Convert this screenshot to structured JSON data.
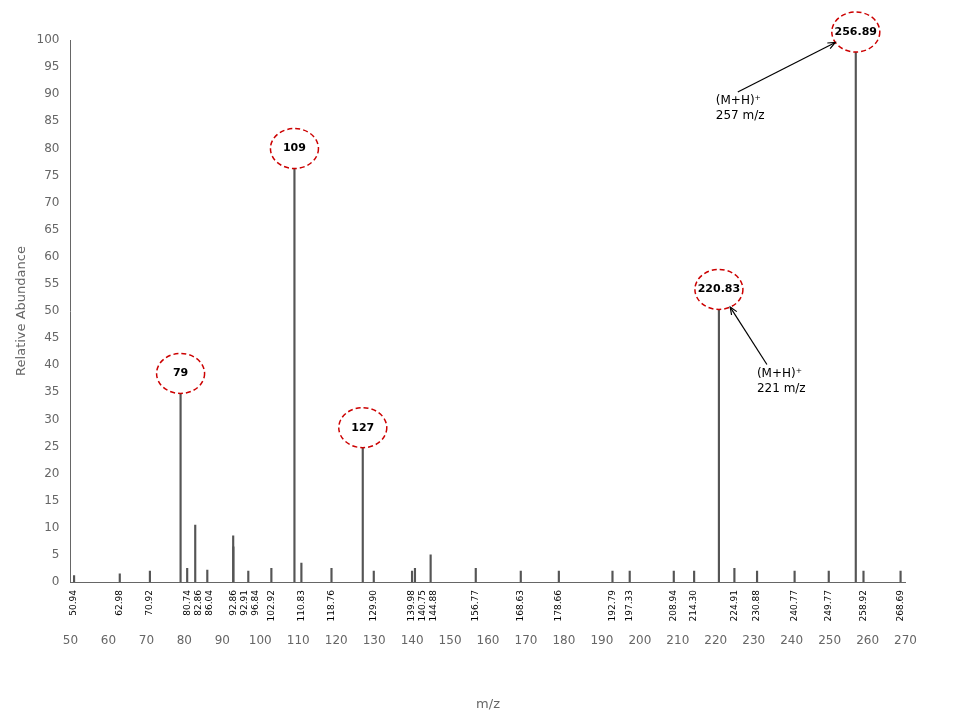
{
  "chart_data": {
    "type": "stem",
    "xlabel": "m/z",
    "ylabel": "Relative Abundance",
    "xlim": [
      50,
      270
    ],
    "ylim": [
      0,
      100
    ],
    "xticks": [
      50,
      60,
      70,
      80,
      90,
      100,
      110,
      120,
      130,
      140,
      150,
      160,
      170,
      180,
      190,
      200,
      210,
      220,
      230,
      240,
      250,
      260,
      270
    ],
    "yticks": [
      0,
      5,
      10,
      15,
      20,
      25,
      30,
      35,
      40,
      45,
      50,
      55,
      60,
      65,
      70,
      75,
      80,
      85,
      90,
      95,
      100
    ],
    "grid": false,
    "legend": false,
    "color": "#555555",
    "x": [
      50.94,
      62.98,
      70.92,
      80.74,
      82.86,
      86.04,
      92.86,
      92.91,
      96.84,
      102.92,
      110.83,
      118.76,
      129.9,
      139.98,
      140.75,
      144.88,
      156.77,
      168.63,
      178.66,
      192.79,
      197.33,
      208.94,
      214.3,
      224.91,
      230.88,
      240.77,
      249.77,
      258.92,
      268.69,
      256.89,
      109.0,
      220.83,
      79.0,
      127.0
    ],
    "values": [
      1.2,
      1.5,
      2.0,
      2.5,
      10.5,
      2.2,
      8.5,
      6.5,
      2.0,
      2.5,
      3.5,
      2.5,
      2.0,
      2.0,
      2.5,
      5.0,
      2.5,
      2.0,
      2.0,
      2.0,
      2.0,
      2.0,
      2.0,
      2.5,
      2.0,
      2.0,
      2.0,
      2.0,
      2.0,
      100.0,
      78.5,
      52.5,
      37.0,
      27.0
    ],
    "x_labels": [
      "50.94",
      "62.98",
      "70.92",
      "80.74",
      "82.86",
      "86.04",
      "92.86",
      "92.91",
      "96.84",
      "102.92",
      "110.83",
      "118.76",
      "129.90",
      "139.98",
      "140.75",
      "144.88",
      "156.77",
      "168.63",
      "178.66",
      "192.79",
      "197.33",
      "208.94",
      "214.30",
      "224.91",
      "230.88",
      "240.77",
      "249.77",
      "258.92",
      "268.69",
      null,
      null,
      null,
      null,
      null
    ],
    "annotations": [
      {
        "text": "256.89",
        "x": 256.89,
        "y": 100.0,
        "shape": "ellipse",
        "color": "#cc0000"
      },
      {
        "text": "109",
        "x": 109.0,
        "y": 78.5,
        "shape": "ellipse",
        "color": "#cc0000"
      },
      {
        "text": "220.83",
        "x": 220.83,
        "y": 52.5,
        "shape": "ellipse",
        "color": "#cc0000"
      },
      {
        "text": "79",
        "x": 79.0,
        "y": 37.0,
        "shape": "ellipse",
        "color": "#cc0000"
      },
      {
        "text": "127",
        "x": 127.0,
        "y": 27.0,
        "shape": "ellipse",
        "color": "#cc0000"
      },
      {
        "text": "(M+H)⁺\n257 m/z",
        "x": 256.89,
        "y": 100.0,
        "arrow": true
      },
      {
        "text": "(M+H)⁺\n221 m/z",
        "x": 220.83,
        "y": 52.5,
        "arrow": true
      }
    ]
  }
}
